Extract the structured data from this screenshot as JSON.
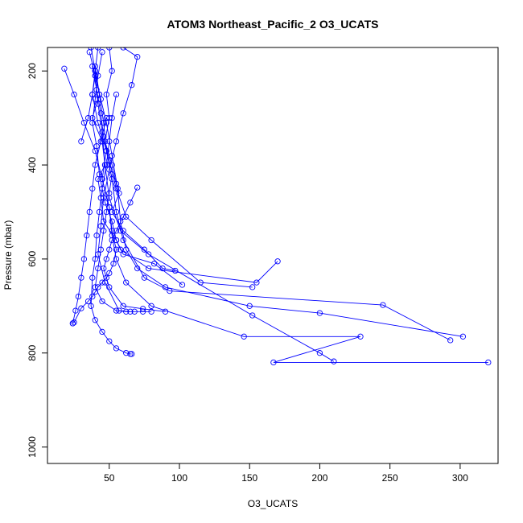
{
  "chart_data": {
    "type": "line",
    "title": "ATOM3 Northeast_Pacific_2 O3_UCATS",
    "xlabel": "O3_UCATS",
    "ylabel": "Pressure (mbar)",
    "xlim": [
      6,
      327
    ],
    "ylim": [
      1035,
      150
    ],
    "y_reversed": true,
    "x_ticks": [
      50,
      100,
      150,
      200,
      250,
      300
    ],
    "y_ticks": [
      200,
      400,
      600,
      800,
      1000
    ],
    "color": "#0000ff",
    "grid": false,
    "series": [
      {
        "x": [
          37,
          40,
          43,
          38,
          45,
          47,
          42,
          44,
          46,
          55,
          58,
          78,
          155,
          170
        ],
        "y": [
          150,
          200,
          250,
          300,
          350,
          400,
          430,
          470,
          520,
          560,
          580,
          620,
          650,
          605
        ]
      },
      {
        "x": [
          50,
          52,
          48,
          50,
          47,
          52,
          55,
          57,
          52,
          60,
          75,
          88,
          97
        ],
        "y": [
          150,
          200,
          250,
          300,
          350,
          400,
          440,
          460,
          500,
          540,
          580,
          620,
          625
        ]
      },
      {
        "x": [
          45,
          42,
          40,
          38,
          41,
          43,
          47,
          52,
          55,
          60,
          82,
          102
        ],
        "y": [
          160,
          210,
          260,
          310,
          360,
          420,
          480,
          520,
          560,
          590,
          610,
          655
        ]
      },
      {
        "x": [
          38,
          41,
          44,
          46,
          50,
          55,
          62,
          80,
          115,
          152
        ],
        "y": [
          190,
          240,
          290,
          340,
          390,
          450,
          510,
          560,
          650,
          660
        ]
      },
      {
        "x": [
          36,
          40,
          44,
          48,
          52,
          56,
          58,
          62,
          70,
          90,
          150,
          200,
          302
        ],
        "y": [
          160,
          210,
          260,
          310,
          380,
          450,
          520,
          580,
          620,
          660,
          700,
          715,
          765
        ]
      },
      {
        "x": [
          42,
          40,
          38,
          42,
          48,
          52,
          55,
          60,
          75,
          93,
          245,
          293
        ],
        "y": [
          150,
          200,
          250,
          310,
          370,
          430,
          500,
          560,
          640,
          668,
          698,
          773
        ]
      },
      {
        "x": [
          40,
          43,
          46,
          48,
          45,
          50,
          52,
          55,
          62,
          80,
          146,
          229,
          167,
          320
        ],
        "y": [
          190,
          250,
          310,
          370,
          430,
          490,
          550,
          600,
          650,
          700,
          765,
          765,
          820,
          820
        ]
      },
      {
        "x": [
          30,
          35,
          38,
          40,
          42,
          45,
          47,
          50,
          58,
          78,
          152,
          200,
          210
        ],
        "y": [
          350,
          300,
          250,
          210,
          270,
          330,
          400,
          470,
          540,
          590,
          720,
          800,
          818
        ]
      },
      {
        "x": [
          18,
          25,
          32,
          40,
          45,
          50,
          52,
          55,
          53,
          50,
          48,
          45,
          42,
          40,
          38,
          35,
          30,
          25,
          24
        ],
        "y": [
          195,
          250,
          310,
          370,
          430,
          490,
          540,
          580,
          610,
          630,
          640,
          650,
          660,
          670,
          680,
          690,
          705,
          735,
          737
        ]
      },
      {
        "x": [
          55,
          52,
          50,
          48,
          45,
          43,
          41,
          40,
          38,
          37,
          40,
          45,
          50,
          55,
          62,
          65,
          66
        ],
        "y": [
          250,
          300,
          350,
          400,
          450,
          500,
          550,
          600,
          640,
          700,
          730,
          755,
          775,
          790,
          800,
          802,
          802
        ]
      },
      {
        "x": [
          48,
          44,
          40,
          38,
          36,
          34,
          32,
          30,
          28,
          26,
          24
        ],
        "y": [
          300,
          350,
          400,
          450,
          500,
          550,
          600,
          640,
          680,
          710,
          737
        ]
      },
      {
        "x": [
          52,
          50,
          48,
          46,
          44,
          42,
          40,
          45,
          55,
          62,
          68,
          74,
          80
        ],
        "y": [
          420,
          460,
          500,
          540,
          580,
          620,
          660,
          690,
          710,
          712,
          712,
          712,
          712
        ]
      },
      {
        "x": [
          60,
          70,
          66,
          60,
          55,
          50,
          46,
          44,
          42,
          47,
          57,
          65
        ],
        "y": [
          150,
          170,
          230,
          290,
          350,
          410,
          470,
          530,
          590,
          650,
          710,
          712
        ]
      },
      {
        "x": [
          70,
          65,
          60,
          55,
          52,
          50,
          48,
          46,
          50,
          60,
          74,
          90
        ],
        "y": [
          448,
          480,
          510,
          540,
          560,
          580,
          600,
          620,
          660,
          700,
          706,
          712
        ]
      }
    ]
  }
}
